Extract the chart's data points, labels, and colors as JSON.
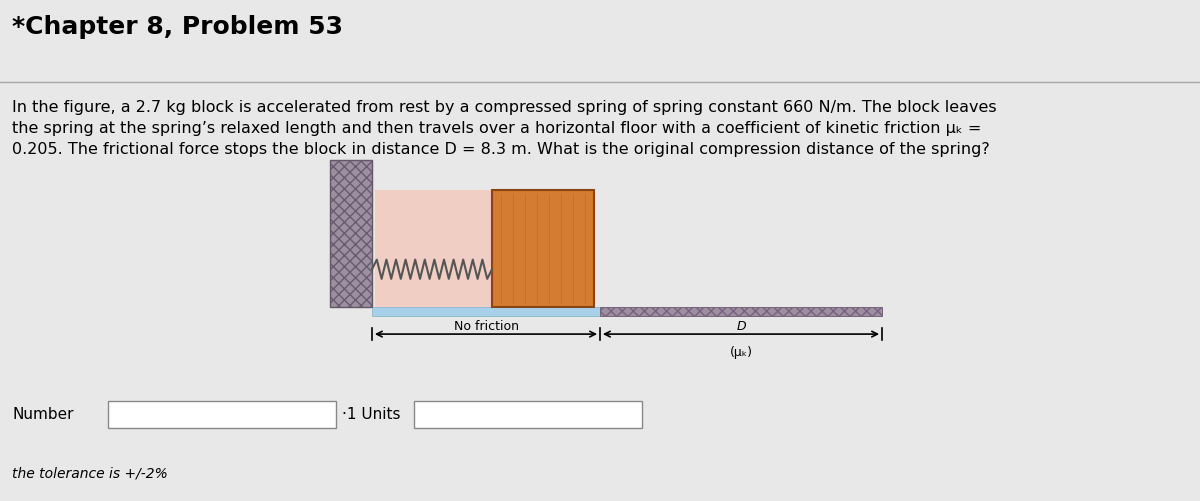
{
  "title": "*Chapter 8, Problem 53",
  "body_text": "In the figure, a 2.7 kg block is accelerated from rest by a compressed spring of spring constant 660 N/m. The block leaves\nthe spring at the spring’s relaxed length and then travels over a horizontal floor with a coefficient of kinetic friction μₖ =\n0.205. The frictional force stops the block in distance D = 8.3 m. What is the original compression distance of the spring?",
  "bg_color": "#e8e8e8",
  "wall_color": "#9b8fa0",
  "floor_no_friction_color": "#a8d0e8",
  "floor_friction_color": "#9b8fa0",
  "block_color": "#d47c30",
  "no_friction_label": "No friction",
  "D_label": "D",
  "mu_label": "(μₖ)",
  "number_label": "Number",
  "tolerance_label": "the tolerance is +/-2%",
  "title_fontsize": 18,
  "body_fontsize": 11.5
}
